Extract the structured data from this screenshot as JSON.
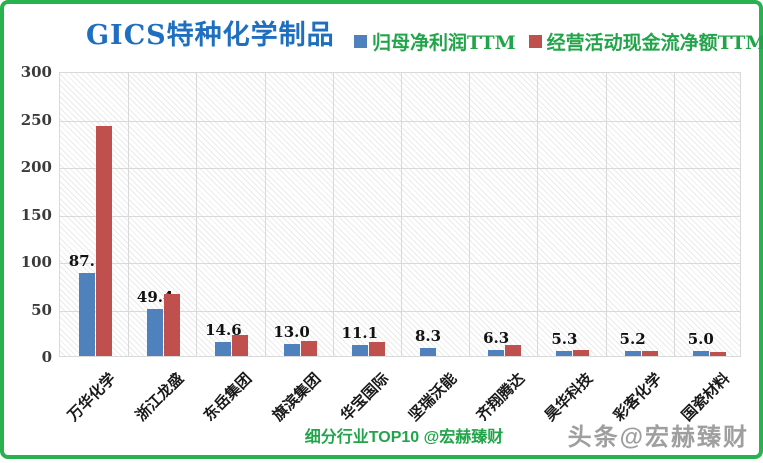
{
  "window": {
    "border_color": "#27b24e",
    "background": "#ffffff"
  },
  "header": {
    "title": "GICS特种化学制品",
    "title_color": "#1e6fc0",
    "legend_text_color": "#22a54a"
  },
  "footer": {
    "caption": "细分行业TOP10 @宏赫臻财",
    "caption_color": "#22a54a",
    "watermark": "头条@宏赫臻财",
    "watermark_color": "#8f8f8f"
  },
  "chart_data": {
    "type": "bar",
    "title": "GICS特种化学制品",
    "categories": [
      "万华化学",
      "浙江龙盛",
      "东岳集团",
      "旗滨集团",
      "华宝国际",
      "坚瑞沃能",
      "齐翔腾达",
      "昊华科技",
      "彩客化学",
      "国瓷材料"
    ],
    "series": [
      {
        "name": "归母净利润TTM",
        "color": "#4f81bd",
        "values": [
          87.1,
          49.4,
          14.6,
          13.0,
          11.1,
          8.3,
          6.3,
          5.3,
          5.2,
          5.0
        ],
        "data_labels": [
          "87.1",
          "49.4",
          "14.6",
          "13.0",
          "11.1",
          "8.3",
          "6.3",
          "5.3",
          "5.2",
          "5.0"
        ]
      },
      {
        "name": "经营活动现金流净额TTM",
        "color": "#c0504d",
        "values": [
          242,
          65,
          22,
          16,
          15,
          0,
          12,
          6,
          5,
          4
        ],
        "data_labels": null
      }
    ],
    "xlabel": "",
    "ylabel": "",
    "ylim": [
      0,
      300
    ],
    "yticks": [
      0,
      50,
      100,
      150,
      200,
      250,
      300
    ],
    "grid": true,
    "legend_position": "top",
    "plot_background": "diagonal-hatch",
    "gridline_color": "#d9d9d9"
  }
}
